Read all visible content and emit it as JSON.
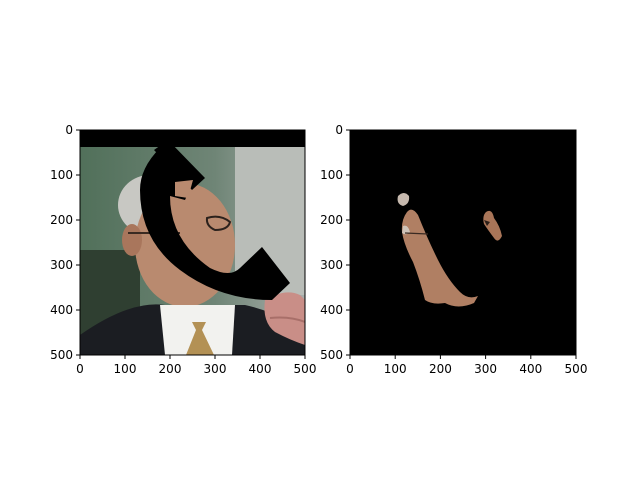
{
  "chart_data": [
    {
      "type": "image",
      "title": "",
      "xlabel": "",
      "ylabel": "",
      "xlim": [
        0,
        500
      ],
      "ylim": [
        500,
        0
      ],
      "x_ticks": [
        0,
        100,
        200,
        300,
        400,
        500
      ],
      "y_ticks": [
        0,
        100,
        200,
        300,
        400,
        500
      ],
      "image_description": "Photo of a man in a suit and tie holding a phone to his ear; a large black telephone-handset shaped mask covers much of the face and a black band covers the top of the image."
    },
    {
      "type": "image",
      "title": "",
      "xlabel": "",
      "ylabel": "",
      "xlim": [
        0,
        500
      ],
      "ylim": [
        500,
        0
      ],
      "x_ticks": [
        0,
        100,
        200,
        300,
        400,
        500
      ],
      "y_ticks": [
        0,
        100,
        200,
        300,
        400,
        500
      ],
      "image_description": "Segmentation result: black background with only small skin-colored face regions visible along the left cheek/jaw and a small patch near the right eye."
    }
  ],
  "colors": {
    "background": "#ffffff",
    "mask": "#000000",
    "skin": "#b8876a",
    "suit": "#1b1d22",
    "shirt": "#f2f2f0",
    "tie": "#b39155",
    "hair": "#c9c9c4",
    "backdrop_green": "#4f6b55",
    "backdrop_gray": "#9aa29c"
  }
}
